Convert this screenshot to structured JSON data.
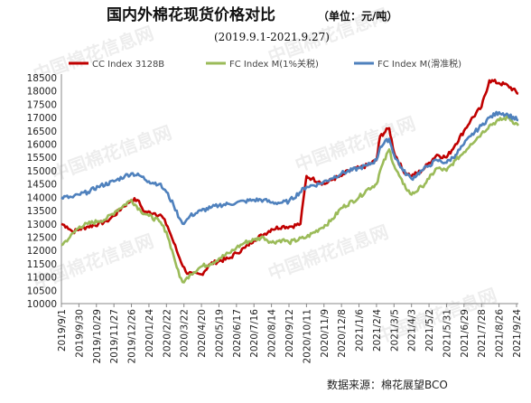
{
  "title": "国内外棉花现货价格对比",
  "unit": "（单位：元/吨）",
  "subtitle": "(2019.9.1-2021.9.27)",
  "source": "数据来源：棉花展望BCO",
  "watermark": "中国棉花信息网",
  "chart_data": {
    "type": "line",
    "title": "国内外棉花现货价格对比",
    "subtitle": "(2019.9.1-2021.9.27)",
    "ylabel": "",
    "xlabel": "",
    "ylim": [
      10000,
      18500
    ],
    "yticks": [
      10000,
      10500,
      11000,
      11500,
      12000,
      12500,
      13000,
      13500,
      14000,
      14500,
      15000,
      15500,
      16000,
      16500,
      17000,
      17500,
      18000,
      18500
    ],
    "xlim": [
      "2019-09-01",
      "2021-09-27"
    ],
    "xticks": [
      "2019/9/1",
      "2019/9/30",
      "2019/10/29",
      "2019/11/27",
      "2019/12/26",
      "2020/1/24",
      "2020/2/22",
      "2020/3/22",
      "2020/4/20",
      "2020/5/19",
      "2020/6/17",
      "2020/7/16",
      "2020/8/14",
      "2020/9/12",
      "2020/10/11",
      "2020/11/9",
      "2020/12/8",
      "2021/1/6",
      "2021/2/4",
      "2021/3/5",
      "2021/4/3",
      "2021/5/2",
      "2021/5/31",
      "2021/6/29",
      "2021/7/28",
      "2021/8/26",
      "2021/9/24"
    ],
    "grid": false,
    "legend_position": "top",
    "series": [
      {
        "name": "CC Index 3128B",
        "color": "#c00000",
        "points": [
          [
            "2019-09-01",
            13000
          ],
          [
            "2019-09-10",
            12900
          ],
          [
            "2019-09-20",
            12700
          ],
          [
            "2019-10-01",
            12800
          ],
          [
            "2019-10-15",
            12900
          ],
          [
            "2019-11-01",
            13000
          ],
          [
            "2019-11-15",
            13100
          ],
          [
            "2019-11-27",
            13300
          ],
          [
            "2019-12-10",
            13600
          ],
          [
            "2019-12-26",
            13900
          ],
          [
            "2020-01-05",
            13900
          ],
          [
            "2020-01-10",
            13700
          ],
          [
            "2020-01-17",
            13450
          ],
          [
            "2020-02-03",
            13400
          ],
          [
            "2020-02-14",
            13300
          ],
          [
            "2020-02-24",
            12900
          ],
          [
            "2020-03-05",
            12300
          ],
          [
            "2020-03-15",
            11700
          ],
          [
            "2020-03-25",
            11200
          ],
          [
            "2020-04-05",
            11100
          ],
          [
            "2020-04-20",
            11100
          ],
          [
            "2020-05-05",
            11500
          ],
          [
            "2020-05-19",
            11600
          ],
          [
            "2020-06-05",
            11700
          ],
          [
            "2020-06-17",
            11900
          ],
          [
            "2020-07-01",
            12100
          ],
          [
            "2020-07-16",
            12400
          ],
          [
            "2020-08-01",
            12600
          ],
          [
            "2020-08-14",
            12800
          ],
          [
            "2020-09-01",
            12900
          ],
          [
            "2020-09-15",
            12900
          ],
          [
            "2020-10-01",
            13000
          ],
          [
            "2020-10-11",
            14800
          ],
          [
            "2020-10-20",
            14700
          ],
          [
            "2020-11-01",
            14600
          ],
          [
            "2020-11-10",
            14500
          ],
          [
            "2020-11-25",
            14700
          ],
          [
            "2020-12-08",
            14800
          ],
          [
            "2020-12-20",
            15000
          ],
          [
            "2021-01-06",
            15100
          ],
          [
            "2021-01-20",
            15200
          ],
          [
            "2021-02-04",
            15400
          ],
          [
            "2021-02-10",
            16300
          ],
          [
            "2021-02-25",
            16600
          ],
          [
            "2021-03-05",
            15700
          ],
          [
            "2021-03-20",
            15000
          ],
          [
            "2021-04-03",
            14800
          ],
          [
            "2021-04-20",
            15000
          ],
          [
            "2021-05-02",
            15300
          ],
          [
            "2021-05-15",
            15600
          ],
          [
            "2021-05-31",
            15500
          ],
          [
            "2021-06-15",
            16000
          ],
          [
            "2021-06-29",
            16500
          ],
          [
            "2021-07-10",
            16900
          ],
          [
            "2021-07-28",
            17400
          ],
          [
            "2021-08-10",
            18400
          ],
          [
            "2021-08-26",
            18300
          ],
          [
            "2021-09-10",
            18200
          ],
          [
            "2021-09-27",
            17900
          ]
        ]
      },
      {
        "name": "FC Index M(1%关税)",
        "color": "#9bbb59",
        "points": [
          [
            "2019-09-01",
            12200
          ],
          [
            "2019-09-15",
            12500
          ],
          [
            "2019-10-01",
            12900
          ],
          [
            "2019-10-15",
            13000
          ],
          [
            "2019-11-01",
            13100
          ],
          [
            "2019-11-15",
            13200
          ],
          [
            "2019-12-01",
            13500
          ],
          [
            "2019-12-26",
            13900
          ],
          [
            "2020-01-10",
            13500
          ],
          [
            "2020-01-24",
            13300
          ],
          [
            "2020-02-10",
            13100
          ],
          [
            "2020-02-22",
            12700
          ],
          [
            "2020-03-05",
            11800
          ],
          [
            "2020-03-15",
            11000
          ],
          [
            "2020-03-22",
            10800
          ],
          [
            "2020-04-01",
            11100
          ],
          [
            "2020-04-20",
            11400
          ],
          [
            "2020-05-05",
            11500
          ],
          [
            "2020-05-19",
            11700
          ],
          [
            "2020-06-05",
            11900
          ],
          [
            "2020-06-17",
            12100
          ],
          [
            "2020-07-01",
            12300
          ],
          [
            "2020-07-16",
            12400
          ],
          [
            "2020-08-01",
            12500
          ],
          [
            "2020-08-14",
            12300
          ],
          [
            "2020-09-01",
            12400
          ],
          [
            "2020-09-12",
            12300
          ],
          [
            "2020-10-11",
            12500
          ],
          [
            "2020-11-01",
            12800
          ],
          [
            "2020-11-20",
            13100
          ],
          [
            "2020-12-08",
            13600
          ],
          [
            "2021-01-06",
            14000
          ],
          [
            "2021-01-20",
            14300
          ],
          [
            "2021-02-04",
            14500
          ],
          [
            "2021-02-10",
            15000
          ],
          [
            "2021-02-25",
            15800
          ],
          [
            "2021-03-05",
            15200
          ],
          [
            "2021-03-20",
            14500
          ],
          [
            "2021-04-03",
            14100
          ],
          [
            "2021-04-20",
            14400
          ],
          [
            "2021-05-02",
            14700
          ],
          [
            "2021-05-15",
            15100
          ],
          [
            "2021-05-31",
            15000
          ],
          [
            "2021-06-15",
            15400
          ],
          [
            "2021-06-29",
            15700
          ],
          [
            "2021-07-10",
            16000
          ],
          [
            "2021-07-28",
            16400
          ],
          [
            "2021-08-10",
            16700
          ],
          [
            "2021-08-26",
            16900
          ],
          [
            "2021-09-10",
            17000
          ],
          [
            "2021-09-27",
            16700
          ]
        ]
      },
      {
        "name": "FC Index M(滑准税)",
        "color": "#4f81bd",
        "points": [
          [
            "2019-09-01",
            14000
          ],
          [
            "2019-09-20",
            14000
          ],
          [
            "2019-09-30",
            14100
          ],
          [
            "2019-10-15",
            14200
          ],
          [
            "2019-11-01",
            14400
          ],
          [
            "2019-11-27",
            14600
          ],
          [
            "2019-12-15",
            14800
          ],
          [
            "2019-12-26",
            14900
          ],
          [
            "2020-01-10",
            14800
          ],
          [
            "2020-01-24",
            14600
          ],
          [
            "2020-02-10",
            14500
          ],
          [
            "2020-02-22",
            14200
          ],
          [
            "2020-03-05",
            13700
          ],
          [
            "2020-03-15",
            13200
          ],
          [
            "2020-03-22",
            13000
          ],
          [
            "2020-04-01",
            13300
          ],
          [
            "2020-04-20",
            13500
          ],
          [
            "2020-05-05",
            13600
          ],
          [
            "2020-05-19",
            13700
          ],
          [
            "2020-06-05",
            13750
          ],
          [
            "2020-06-17",
            13800
          ],
          [
            "2020-07-01",
            13850
          ],
          [
            "2020-07-16",
            13900
          ],
          [
            "2020-08-01",
            13900
          ],
          [
            "2020-08-14",
            13800
          ],
          [
            "2020-09-01",
            13800
          ],
          [
            "2020-09-12",
            13850
          ],
          [
            "2020-10-11",
            14400
          ],
          [
            "2020-11-01",
            14500
          ],
          [
            "2020-11-20",
            14700
          ],
          [
            "2020-12-08",
            14900
          ],
          [
            "2021-01-06",
            15100
          ],
          [
            "2021-01-20",
            15200
          ],
          [
            "2021-02-04",
            15400
          ],
          [
            "2021-02-10",
            15900
          ],
          [
            "2021-02-25",
            16200
          ],
          [
            "2021-03-05",
            15600
          ],
          [
            "2021-03-20",
            15000
          ],
          [
            "2021-04-03",
            14700
          ],
          [
            "2021-04-20",
            15000
          ],
          [
            "2021-05-02",
            15200
          ],
          [
            "2021-05-15",
            15400
          ],
          [
            "2021-05-31",
            15300
          ],
          [
            "2021-06-15",
            15600
          ],
          [
            "2021-06-29",
            16000
          ],
          [
            "2021-07-10",
            16300
          ],
          [
            "2021-07-28",
            16700
          ],
          [
            "2021-08-10",
            17000
          ],
          [
            "2021-08-26",
            17200
          ],
          [
            "2021-09-10",
            17100
          ],
          [
            "2021-09-27",
            16900
          ]
        ]
      }
    ]
  }
}
